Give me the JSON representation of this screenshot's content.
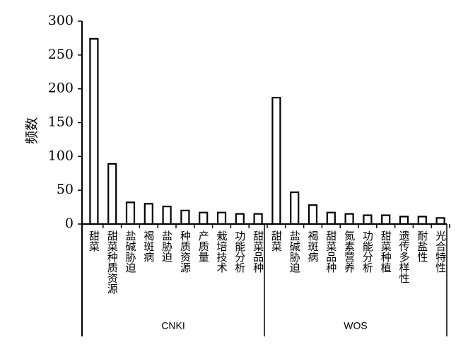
{
  "chart_data": {
    "type": "bar",
    "title": "",
    "ylabel": "频数",
    "ylim": [
      0,
      300
    ],
    "yticks": [
      0,
      50,
      100,
      150,
      200,
      250,
      300
    ],
    "groups": [
      {
        "name": "CNKI",
        "categories": [
          "甜菜",
          "甜菜种质资源",
          "盐碱胁迫",
          "褐斑病",
          "盐胁迫",
          "种质资源",
          "产质量",
          "栽培技术",
          "功能分析",
          "甜菜品种"
        ],
        "values": [
          274,
          89,
          32,
          30,
          26,
          20,
          17,
          17,
          15,
          15
        ]
      },
      {
        "name": "WOS",
        "categories": [
          "甜菜",
          "盐碱胁迫",
          "褐斑病",
          "甜菜品种",
          "氮素营养",
          "功能分析",
          "甜菜种植",
          "遗传多样性",
          "耐盐性",
          "光合特性"
        ],
        "values": [
          187,
          47,
          28,
          17,
          15,
          13,
          13,
          11,
          11,
          9
        ]
      }
    ],
    "bar_fill": "#ffffff",
    "bar_stroke": "#000000",
    "grid": false,
    "legend": "none"
  }
}
